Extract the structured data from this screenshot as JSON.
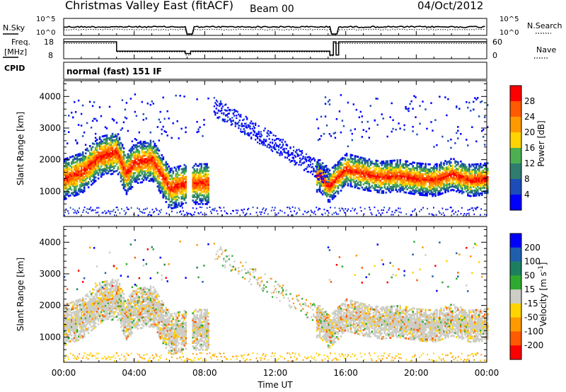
{
  "header": {
    "title": "Christmas Valley East (fitACF)",
    "beam": "Beam 00",
    "date": "04/Oct/2012"
  },
  "sky_panel": {
    "left_label": "N.Sky",
    "right_label": "N.Search",
    "y_top_left": "10^5",
    "y_bot_left": "10^0",
    "y_top_right": "10^5",
    "y_bot_right": "10^0"
  },
  "freq_panel": {
    "left_label_1": "Freq.",
    "left_label_2": "[MHz]",
    "right_label": "Nave",
    "y_top_left": "18",
    "y_bot_left": "8",
    "y_top_right": "60",
    "y_bot_right": "0"
  },
  "cpid": {
    "label": "CPID",
    "value": "normal (fast) 151 IF"
  },
  "colors": {
    "power_scale": [
      "#0000ff",
      "#1c4cb8",
      "#2e7d6e",
      "#4caf50",
      "#ffd400",
      "#ff9900",
      "#ff5a00",
      "#ff0000"
    ],
    "velocity_scale": [
      "#0000ff",
      "#1f5fae",
      "#1c8060",
      "#2faa2f",
      "#cdcdc6",
      "#ffd400",
      "#ff9900",
      "#ff5a00",
      "#ff0000"
    ]
  },
  "chart_data": [
    {
      "type": "heatmap",
      "name": "power",
      "ylabel": "Slant Range [km]",
      "y_ticks": [
        "1000",
        "2000",
        "3000",
        "4000"
      ],
      "ylim": [
        200,
        4500
      ],
      "colorbar_label": "Power [dB]",
      "colorbar_ticks": [
        "4",
        "8",
        "12",
        "16",
        "20",
        "24",
        "28"
      ],
      "colorbar_range": [
        0,
        32
      ],
      "main_band_range_km": [
        [
          0,
          1400
        ],
        [
          1,
          1600
        ],
        [
          2,
          2100
        ],
        [
          3,
          2250
        ],
        [
          3.5,
          1550
        ],
        [
          4,
          1900
        ],
        [
          5,
          2000
        ],
        [
          6,
          1100
        ],
        [
          7,
          1250
        ],
        [
          7.5,
          1150
        ],
        [
          14.5,
          1500
        ],
        [
          15,
          1150
        ],
        [
          16,
          1700
        ],
        [
          17,
          1550
        ],
        [
          18,
          1450
        ],
        [
          19,
          1500
        ],
        [
          20,
          1400
        ],
        [
          21,
          1350
        ],
        [
          22,
          1550
        ],
        [
          23,
          1350
        ],
        [
          24,
          1400
        ]
      ]
    },
    {
      "type": "heatmap",
      "name": "velocity",
      "ylabel": "Slant Range [km]",
      "y_ticks": [
        "1000",
        "2000",
        "3000",
        "4000"
      ],
      "ylim": [
        200,
        4500
      ],
      "colorbar_label": "Velocity [m s^-1]",
      "colorbar_ticks": [
        "200",
        "100",
        "50",
        "15",
        "-15",
        "-50",
        "-100",
        "-200"
      ],
      "colorbar_range": [
        -250,
        250
      ],
      "xlabel": "Time UT",
      "x_ticks": [
        "00:00",
        "04:00",
        "08:00",
        "12:00",
        "16:00",
        "20:00",
        "00:00"
      ],
      "xlim": [
        0,
        24
      ]
    }
  ]
}
